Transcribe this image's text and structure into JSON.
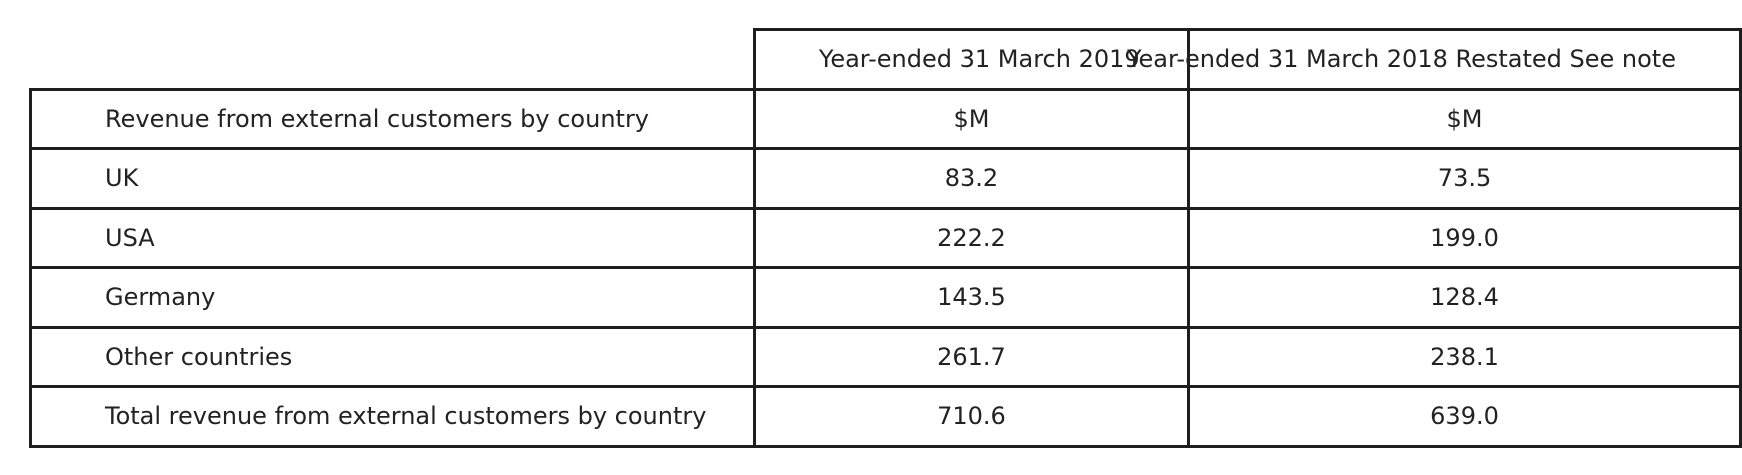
{
  "table": {
    "headers": [
      "",
      "Year-ended 31 March 2019",
      "Year-ended 31 March 2018 Restated See note"
    ],
    "rows": [
      [
        "Revenue from external customers by country",
        "$M",
        "$M"
      ],
      [
        "UK",
        "83.2",
        "73.5"
      ],
      [
        "USA",
        "222.2",
        "199.0"
      ],
      [
        "Germany",
        "143.5",
        "128.4"
      ],
      [
        "Other countries",
        "261.7",
        "238.1"
      ],
      [
        "Total revenue from external customers by country",
        "710.6",
        "639.0"
      ]
    ]
  }
}
